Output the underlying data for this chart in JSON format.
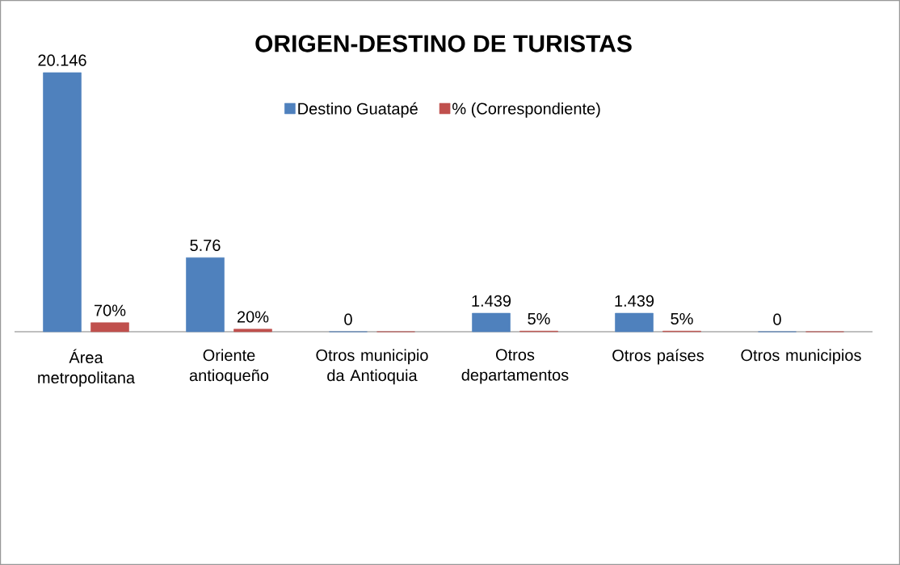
{
  "chart_data": {
    "type": "bar",
    "title": "ORIGEN-DESTINO DE TURISTAS",
    "categories": [
      "Área metropolitana",
      "Oriente antioqueño",
      "Otros municipio da Antioquia",
      "Otros departamentos",
      "Otros países",
      "Otros municipios"
    ],
    "series": [
      {
        "name": "Destino Guatapé",
        "color": "#4f81bd",
        "values": [
          20.146,
          5.76,
          0,
          1.439,
          1.439,
          0
        ],
        "value_labels": [
          "20.146",
          "5.76",
          "0",
          "1.439",
          "1.439",
          "0"
        ]
      },
      {
        "name": "% (Correspondiente)",
        "color": "#c0504d",
        "values": [
          0.7,
          0.2,
          0,
          0.05,
          0.05,
          0
        ],
        "value_labels": [
          "70%",
          "20%",
          null,
          "5%",
          "5%",
          null
        ]
      }
    ],
    "legend": "top"
  }
}
